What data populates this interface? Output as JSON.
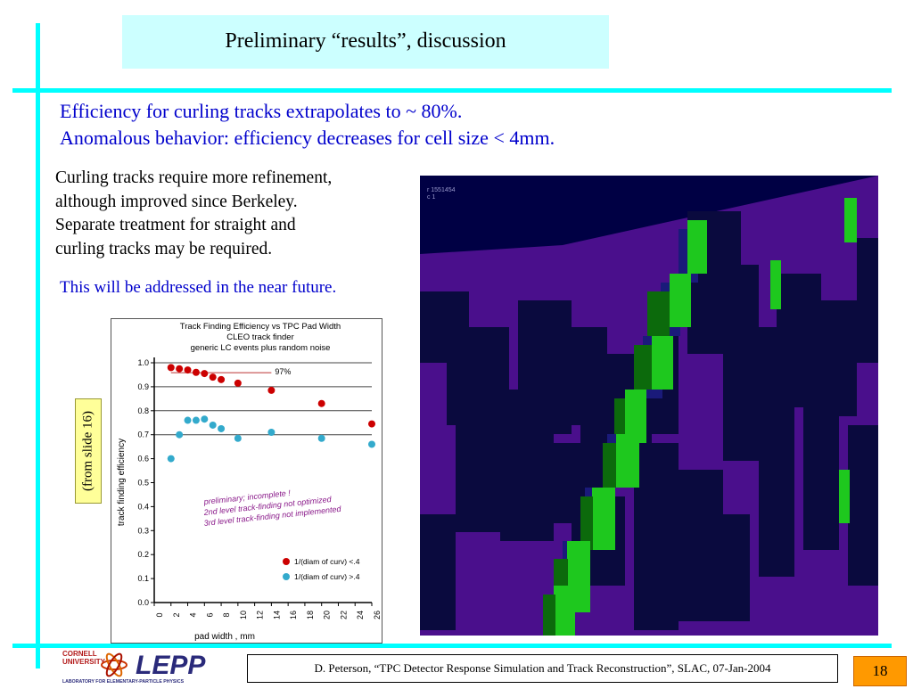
{
  "slide": {
    "title": "Preliminary “results”, discussion",
    "bullets": [
      "Efficiency for curling tracks extrapolates to ~ 80%.",
      "Anomalous behavior: efficiency decreases for cell size < 4mm."
    ],
    "paragraph_lines": [
      "Curling tracks require more refinement,",
      "although improved since Berkeley.",
      "Separate treatment for straight and",
      "curling tracks may be required."
    ],
    "note": "This will be addressed in the near future.",
    "from_slide_label": "(from slide 16)",
    "footer": "D. Peterson, “TPC Detector Response Simulation and Track Reconstruction”, SLAC, 07-Jan-2004",
    "page_number": "18",
    "logo": {
      "university_line1": "CORNELL",
      "university_line2": "UNIVERSITY",
      "lab_abbrev": "LEPP",
      "lab_name": "LABORATORY FOR ELEMENTARY-PARTICLE PHYSICS"
    },
    "simulation_readout": {
      "line1": "r 1551454",
      "line2": "c      1"
    },
    "colors": {
      "accent_cyan": "#00ffff",
      "title_bg": "#ccffff",
      "bullet_blue": "#0000cc",
      "page_box": "#ff9900",
      "sim_background": "#000044",
      "sim_purple": "#4a0f8c",
      "sim_green": "#1ec81e"
    }
  },
  "chart_data": {
    "type": "scatter",
    "title_lines": [
      "Track Finding Efficiency vs TPC Pad Width",
      "CLEO track finder",
      "generic LC events plus random noise"
    ],
    "xlabel": "pad width , mm",
    "ylabel": "track finding efficiency",
    "xlim": [
      0,
      26
    ],
    "ylim": [
      0,
      1.0
    ],
    "x_ticks": [
      0,
      2,
      4,
      6,
      8,
      10,
      12,
      14,
      16,
      18,
      20,
      22,
      24,
      26
    ],
    "y_ticks": [
      "0.0",
      "0.1",
      "0.2",
      "0.3",
      "0.4",
      "0.5",
      "0.6",
      "0.7",
      "0.8",
      "0.9",
      "1.0"
    ],
    "y_tick_values": [
      0,
      0.1,
      0.2,
      0.3,
      0.4,
      0.5,
      0.6,
      0.7,
      0.8,
      0.9,
      1.0
    ],
    "grid_lines_at": [
      0.7,
      0.8,
      0.9,
      1.0
    ],
    "reference_line": {
      "label": "97%",
      "value": 0.97,
      "x_range": [
        2,
        14
      ]
    },
    "annotation_lines": [
      "preliminary; incomplete !",
      "2nd level track-finding not optimized",
      "3rd level track-finding not implemented"
    ],
    "series": [
      {
        "name": "1/(diam of curv) <.4",
        "color": "#cc0000",
        "x": [
          2,
          3,
          4,
          5,
          6,
          7,
          8,
          10,
          14,
          20,
          26
        ],
        "y": [
          0.98,
          0.975,
          0.97,
          0.96,
          0.955,
          0.94,
          0.93,
          0.915,
          0.885,
          0.83,
          0.745
        ]
      },
      {
        "name": "1/(diam of curv) >.4",
        "color": "#33aacc",
        "x": [
          2,
          3,
          4,
          5,
          6,
          7,
          8,
          10,
          14,
          20,
          26
        ],
        "y": [
          0.6,
          0.7,
          0.76,
          0.76,
          0.765,
          0.74,
          0.725,
          0.685,
          0.71,
          0.685,
          0.66
        ]
      }
    ],
    "legend_position": "lower-right"
  }
}
